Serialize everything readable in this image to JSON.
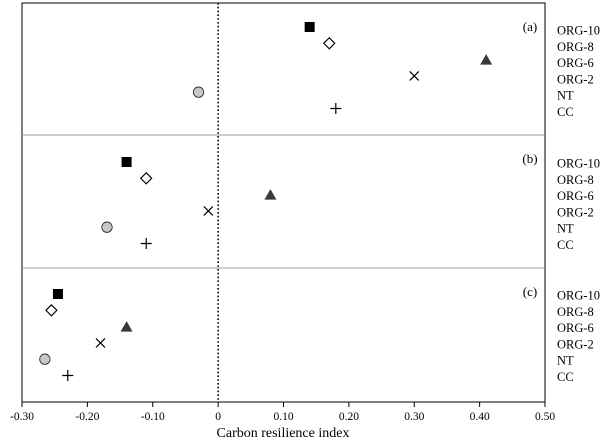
{
  "chart_data": {
    "type": "scatter",
    "xlabel": "Carbon resilience index",
    "xlim": [
      -0.3,
      0.5
    ],
    "x_ticks": [
      -0.3,
      -0.2,
      -0.1,
      0,
      0.1,
      0.2,
      0.3,
      0.4,
      0.5
    ],
    "x_tick_labels": [
      "-0.30",
      "-0.20",
      "-0.10",
      "0",
      "0.10",
      "0.20",
      "0.30",
      "0.40",
      "0.50"
    ],
    "reference_line": {
      "x": 0,
      "style": "dotted"
    },
    "categories": [
      "ORG-10",
      "ORG-8",
      "ORG-6",
      "ORG-2",
      "NT",
      "CC"
    ],
    "markers": {
      "ORG-10": "filled-square",
      "ORG-8": "open-diamond",
      "ORG-6": "filled-triangle",
      "ORG-2": "cross-x",
      "NT": "gray-circle",
      "CC": "plus"
    },
    "colors": {
      "square": "#000000",
      "triangle": "#3a3a3a",
      "circle_fill": "#c8c8c8",
      "divider": "#9a9a9a"
    },
    "panels": [
      {
        "label": "(a)",
        "values": [
          0.14,
          0.17,
          0.41,
          0.3,
          -0.03,
          0.18
        ]
      },
      {
        "label": "(b)",
        "values": [
          -0.14,
          -0.11,
          0.08,
          -0.015,
          -0.17,
          -0.11
        ]
      },
      {
        "label": "(c)",
        "values": [
          -0.245,
          -0.255,
          -0.14,
          -0.18,
          -0.265,
          -0.23
        ]
      }
    ]
  }
}
